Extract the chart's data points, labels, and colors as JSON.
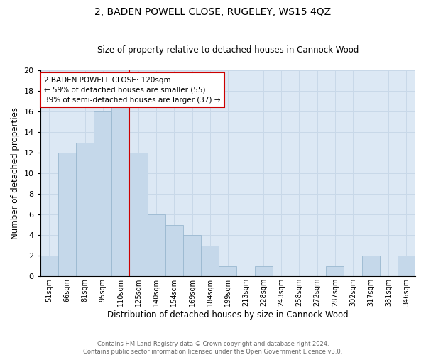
{
  "title": "2, BADEN POWELL CLOSE, RUGELEY, WS15 4QZ",
  "subtitle": "Size of property relative to detached houses in Cannock Wood",
  "xlabel": "Distribution of detached houses by size in Cannock Wood",
  "ylabel": "Number of detached properties",
  "categories": [
    "51sqm",
    "66sqm",
    "81sqm",
    "95sqm",
    "110sqm",
    "125sqm",
    "140sqm",
    "154sqm",
    "169sqm",
    "184sqm",
    "199sqm",
    "213sqm",
    "228sqm",
    "243sqm",
    "258sqm",
    "272sqm",
    "287sqm",
    "302sqm",
    "317sqm",
    "331sqm",
    "346sqm"
  ],
  "values": [
    2,
    12,
    13,
    16,
    17,
    12,
    6,
    5,
    4,
    3,
    1,
    0,
    1,
    0,
    0,
    0,
    1,
    0,
    2,
    0,
    2
  ],
  "bar_color": "#c5d8ea",
  "bar_edge_color": "#9ab8d0",
  "vline_color": "#cc0000",
  "annotation_text": "2 BADEN POWELL CLOSE: 120sqm\n← 59% of detached houses are smaller (55)\n39% of semi-detached houses are larger (37) →",
  "annotation_box_color": "#ffffff",
  "annotation_box_edge": "#cc0000",
  "ylim": [
    0,
    20
  ],
  "yticks": [
    0,
    2,
    4,
    6,
    8,
    10,
    12,
    14,
    16,
    18,
    20
  ],
  "footer": "Contains HM Land Registry data © Crown copyright and database right 2024.\nContains public sector information licensed under the Open Government Licence v3.0.",
  "grid_color": "#c8d8e8",
  "bg_color": "#dce8f4",
  "title_fontsize": 10,
  "subtitle_fontsize": 8.5
}
